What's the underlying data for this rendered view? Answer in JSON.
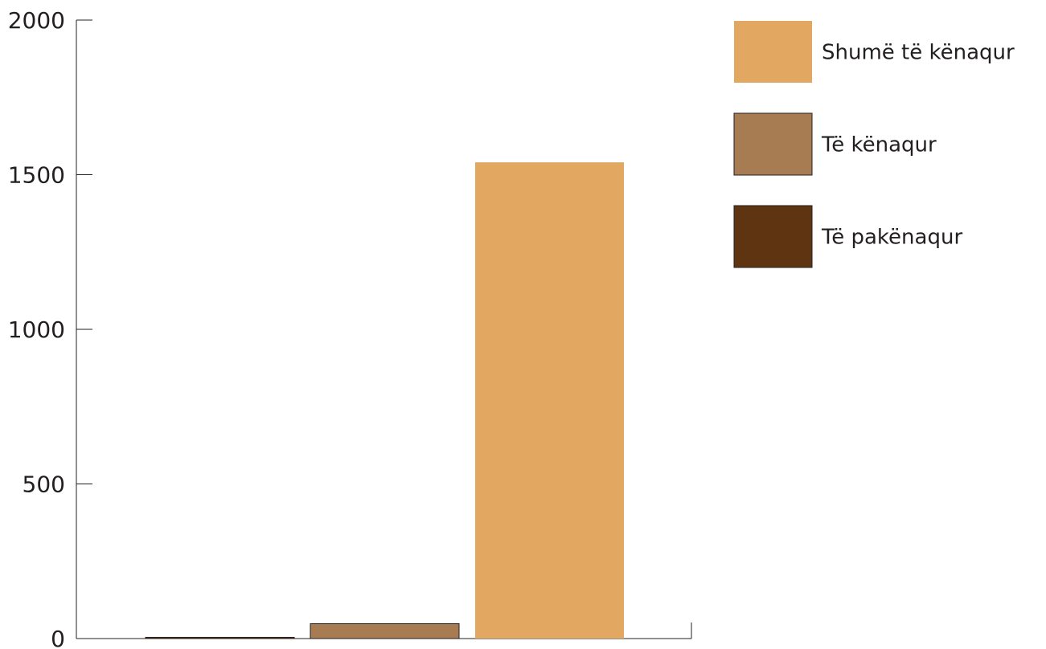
{
  "chart_data": {
    "type": "bar",
    "title": "",
    "xlabel": "",
    "ylabel": "",
    "categories": [
      "Të pakënaqur",
      "Të kënaqur",
      "Shumë të kënaqur"
    ],
    "values": [
      4,
      48,
      1540
    ],
    "colors": [
      "#5e3510",
      "#a77c52",
      "#e2a862"
    ],
    "ylim": [
      0,
      2000
    ],
    "yticks": [
      "0",
      "500",
      "1000",
      "1500",
      "2000"
    ],
    "grid": false,
    "legend": {
      "position": "top-right",
      "entries": [
        {
          "label": "Shumë të kënaqur",
          "color": "#e2a862"
        },
        {
          "label": "Të kënaqur",
          "color": "#a77c52"
        },
        {
          "label": "Të pakënaqur",
          "color": "#5e3510"
        }
      ]
    }
  }
}
